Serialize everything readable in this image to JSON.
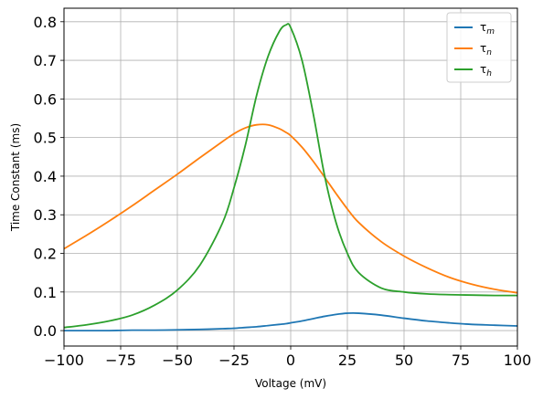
{
  "chart_data": {
    "type": "line",
    "title": "",
    "xlabel": "Voltage (mV)",
    "ylabel": "Time Constant (ms)",
    "xlim": [
      -100,
      100
    ],
    "ylim": [
      -0.04,
      0.835
    ],
    "grid": true,
    "legend_position": "top-right",
    "x_ticks": [
      -100,
      -75,
      -50,
      -25,
      0,
      25,
      50,
      75,
      100
    ],
    "x_tick_labels": [
      "−100",
      "−75",
      "−50",
      "−25",
      "0",
      "25",
      "50",
      "75",
      "100"
    ],
    "y_ticks": [
      0.0,
      0.1,
      0.2,
      0.3,
      0.4,
      0.5,
      0.6,
      0.7,
      0.8
    ],
    "y_tick_labels": [
      "0.0",
      "0.1",
      "0.2",
      "0.3",
      "0.4",
      "0.5",
      "0.6",
      "0.7",
      "0.8"
    ],
    "x": [
      -100,
      -90,
      -80,
      -70,
      -60,
      -50,
      -40,
      -30,
      -25,
      -20,
      -15,
      -10,
      -5,
      -2,
      0,
      5,
      10,
      15,
      20,
      25,
      30,
      40,
      50,
      60,
      70,
      80,
      90,
      100
    ],
    "series": [
      {
        "name": "τ",
        "name_sub": "m",
        "color": "#1f77b4",
        "values": [
          0.0,
          0.0,
          0.0,
          0.001,
          0.001,
          0.002,
          0.003,
          0.005,
          0.006,
          0.008,
          0.01,
          0.013,
          0.016,
          0.018,
          0.02,
          0.025,
          0.031,
          0.037,
          0.042,
          0.045,
          0.045,
          0.04,
          0.032,
          0.025,
          0.02,
          0.016,
          0.014,
          0.012
        ]
      },
      {
        "name": "τ",
        "name_sub": "n",
        "color": "#ff7f0e",
        "values": [
          0.212,
          0.247,
          0.284,
          0.323,
          0.364,
          0.405,
          0.448,
          0.49,
          0.51,
          0.525,
          0.533,
          0.533,
          0.523,
          0.513,
          0.505,
          0.475,
          0.438,
          0.397,
          0.355,
          0.315,
          0.28,
          0.23,
          0.193,
          0.163,
          0.138,
          0.12,
          0.107,
          0.098
        ]
      },
      {
        "name": "τ",
        "name_sub": "h",
        "color": "#2ca02c",
        "values": [
          0.008,
          0.015,
          0.025,
          0.04,
          0.066,
          0.105,
          0.17,
          0.28,
          0.37,
          0.48,
          0.61,
          0.71,
          0.775,
          0.792,
          0.785,
          0.7,
          0.56,
          0.4,
          0.28,
          0.2,
          0.15,
          0.11,
          0.1,
          0.095,
          0.093,
          0.092,
          0.091,
          0.091
        ]
      }
    ]
  }
}
